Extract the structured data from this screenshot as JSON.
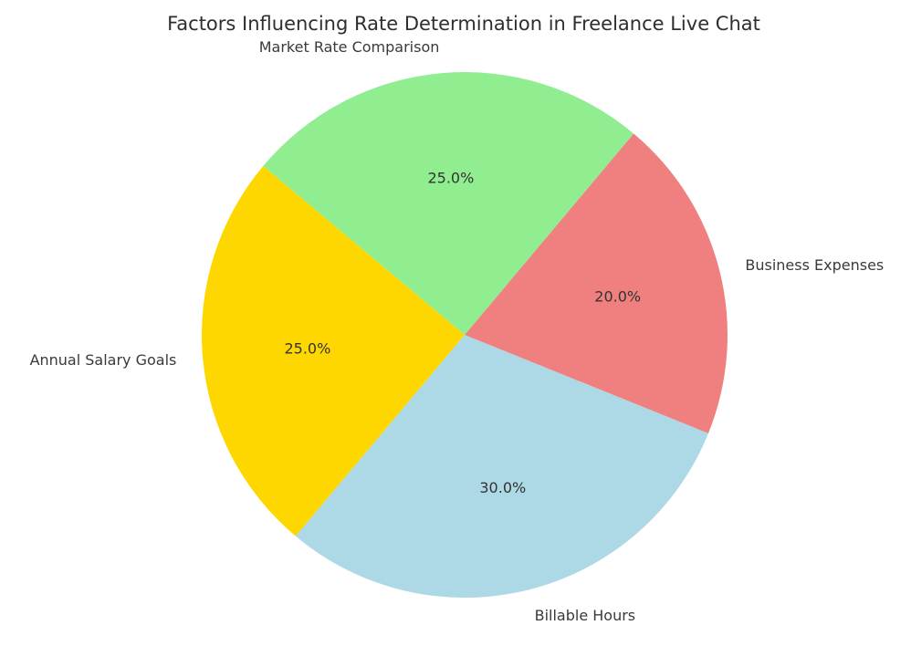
{
  "chart_data": {
    "type": "pie",
    "title": "Factors Influencing Rate Determination in Freelance Live Chat",
    "slices": [
      {
        "label": "Annual Salary Goals",
        "value": 25.0,
        "pct_label": "25.0%",
        "color": "#FFD700"
      },
      {
        "label": "Billable Hours",
        "value": 30.0,
        "pct_label": "30.0%",
        "color": "#ADD8E6"
      },
      {
        "label": "Business Expenses",
        "value": 20.0,
        "pct_label": "20.0%",
        "color": "#F08080"
      },
      {
        "label": "Market Rate Comparison",
        "value": 25.0,
        "pct_label": "25.0%",
        "color": "#90EE90"
      }
    ],
    "start_angle": 140,
    "direction": "counterclockwise",
    "label_distance": 1.1,
    "pct_distance": 0.6,
    "legend": "none",
    "text_color": "#333333",
    "background_color": "#ffffff"
  }
}
